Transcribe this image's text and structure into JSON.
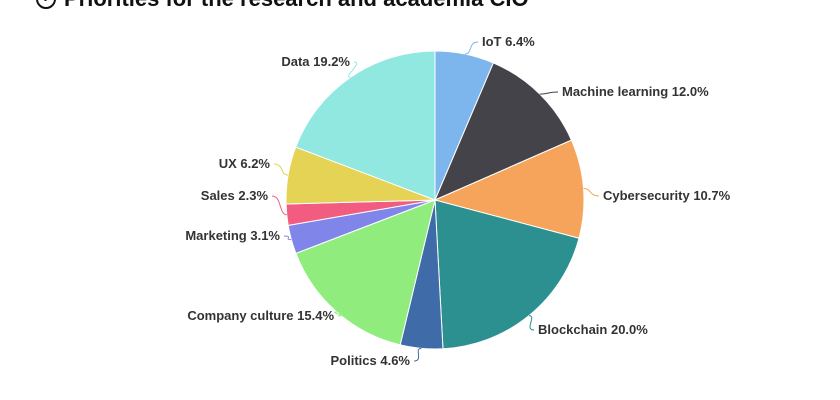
{
  "title": "Priorities for the research and academia CIO",
  "chart_data": {
    "type": "pie",
    "title": "Priorities for the research and academia CIO",
    "slices": [
      {
        "name": "IoT",
        "value": 6.4,
        "label": "IoT 6.4%",
        "color": "#7db6ec"
      },
      {
        "name": "Machine learning",
        "value": 12.0,
        "label": "Machine learning 12.0%",
        "color": "#434349"
      },
      {
        "name": "Cybersecurity",
        "value": 10.7,
        "label": "Cybersecurity 10.7%",
        "color": "#f6a35b"
      },
      {
        "name": "Blockchain",
        "value": 20.0,
        "label": "Blockchain 20.0%",
        "color": "#2b908f"
      },
      {
        "name": "Politics",
        "value": 4.6,
        "label": "Politics 4.6%",
        "color": "#3f6ba8"
      },
      {
        "name": "Company culture",
        "value": 15.4,
        "label": "Company culture 15.4%",
        "color": "#90ed7d"
      },
      {
        "name": "Marketing",
        "value": 3.1,
        "label": "Marketing 3.1%",
        "color": "#8085e9"
      },
      {
        "name": "Sales",
        "value": 2.3,
        "label": "Sales 2.3%",
        "color": "#f15c80"
      },
      {
        "name": "UX",
        "value": 6.2,
        "label": "UX 6.2%",
        "color": "#e4d354"
      },
      {
        "name": "Data",
        "value": 19.2,
        "label": "Data 19.2%",
        "color": "#91e8e1"
      }
    ]
  }
}
